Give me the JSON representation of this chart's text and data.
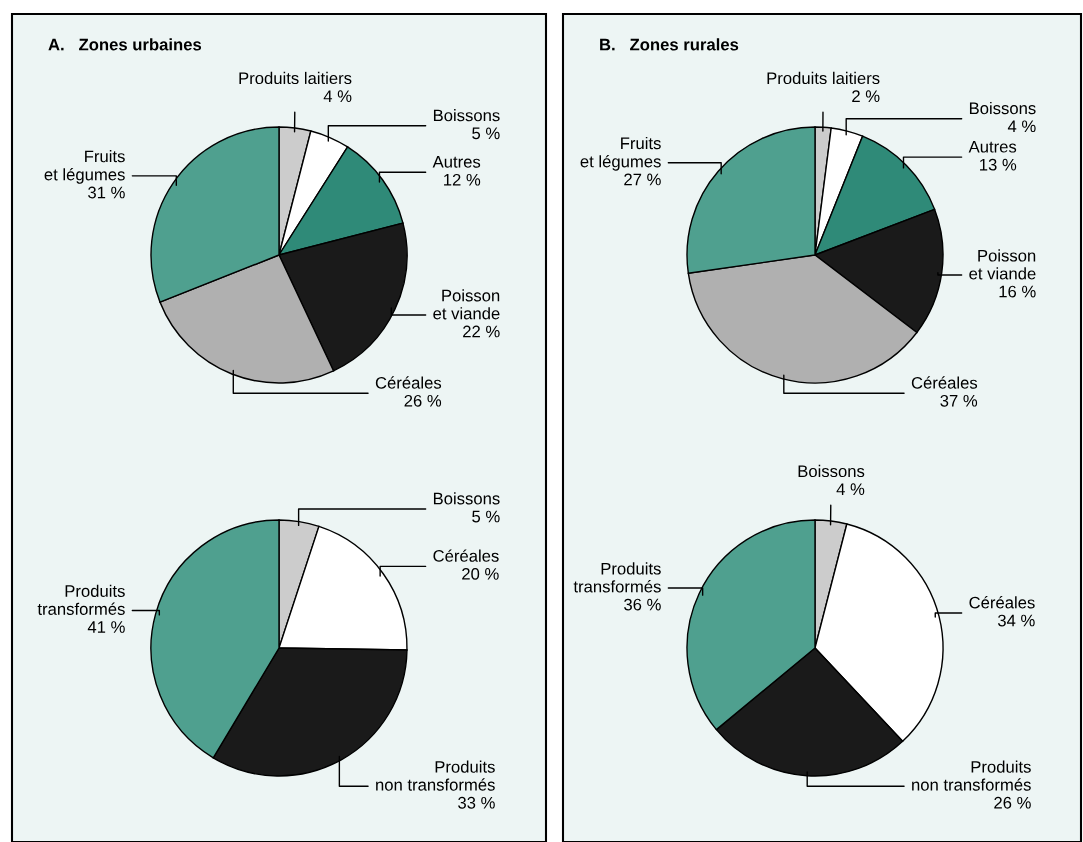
{
  "chart_data": [
    {
      "type": "pie",
      "title": "A.   Zones urbaines",
      "categories": [
        "Produits laitiers",
        "Boissons",
        "Autres",
        "Poisson\net viande",
        "Céréales",
        "Fruits\net légumes"
      ],
      "values": [
        4,
        5,
        12,
        22,
        26,
        31
      ],
      "value_labels": [
        "4 %",
        "5 %",
        "12 %",
        "22 %",
        "26 %",
        "31 %"
      ],
      "colors": [
        "#cccccc",
        "#ffffff",
        "#2f8a78",
        "#1a1a1a",
        "#b0b0b0",
        "#4fa08f"
      ]
    },
    {
      "type": "pie",
      "categories": [
        "Boissons",
        "Céréales",
        "Produits\nnon transformés",
        "Produits\ntransformés"
      ],
      "values": [
        5,
        20,
        33,
        41
      ],
      "value_labels": [
        "5 %",
        "20 %",
        "33 %",
        "41 %"
      ],
      "colors": [
        "#cccccc",
        "#ffffff",
        "#1a1a1a",
        "#4fa08f"
      ]
    },
    {
      "type": "pie",
      "title": "B.   Zones rurales",
      "categories": [
        "Produits laitiers",
        "Boissons",
        "Autres",
        "Poisson\net viande",
        "Céréales",
        "Fruits\net légumes"
      ],
      "values": [
        2,
        4,
        13,
        16,
        37,
        27
      ],
      "value_labels": [
        "2 %",
        "4 %",
        "13 %",
        "16 %",
        "37 %",
        "27 %"
      ],
      "colors": [
        "#cccccc",
        "#ffffff",
        "#2f8a78",
        "#1a1a1a",
        "#b0b0b0",
        "#4fa08f"
      ]
    },
    {
      "type": "pie",
      "categories": [
        "Boissons",
        "Céréales",
        "Produits\nnon transformés",
        "Produits\ntransformés"
      ],
      "values": [
        4,
        34,
        26,
        36
      ],
      "value_labels": [
        "4 %",
        "34 %",
        "26 %",
        "36 %"
      ],
      "colors": [
        "#cccccc",
        "#ffffff",
        "#1a1a1a",
        "#4fa08f"
      ]
    }
  ]
}
